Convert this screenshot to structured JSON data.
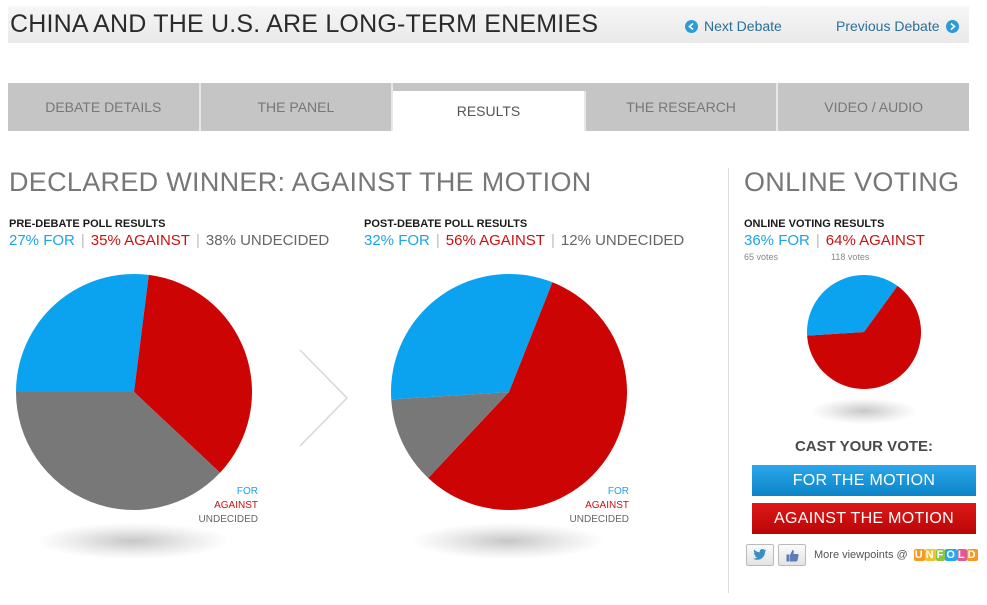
{
  "header": {
    "title": "CHINA AND THE U.S. ARE LONG-TERM ENEMIES",
    "prev_label": "Next Debate",
    "next_label": "Previous Debate"
  },
  "tabs": [
    {
      "label": "DEBATE DETAILS"
    },
    {
      "label": "THE PANEL"
    },
    {
      "label": "RESULTS"
    },
    {
      "label": "THE RESEARCH"
    },
    {
      "label": "VIDEO / AUDIO"
    }
  ],
  "results": {
    "winner_heading": "DECLARED WINNER: AGAINST THE MOTION",
    "pre": {
      "label": "PRE-DEBATE POLL RESULTS",
      "for_text": "27% FOR",
      "against_text": "35% AGAINST",
      "undecided_text": "38% UNDECIDED",
      "for": 27,
      "against": 35,
      "undecided": 38
    },
    "post": {
      "label": "POST-DEBATE POLL RESULTS",
      "for_text": "32% FOR",
      "against_text": "56% AGAINST",
      "undecided_text": "12% UNDECIDED",
      "for": 32,
      "against": 56,
      "undecided": 12
    },
    "legend": {
      "for": "FOR",
      "against": "AGAINST",
      "undecided": "UNDECIDED"
    }
  },
  "online": {
    "heading": "ONLINE VOTING",
    "label": "ONLINE VOTING RESULTS",
    "for_text": "36% FOR",
    "against_text": "64% AGAINST",
    "for_votes": "65 votes",
    "against_votes": "118 votes",
    "for": 36,
    "against": 64
  },
  "cast": {
    "title": "CAST YOUR VOTE:",
    "for_button": "FOR THE MOTION",
    "against_button": "AGAINST THE MOTION"
  },
  "social": {
    "more_text": "More viewpoints @",
    "brand": "UNFOLD"
  },
  "colors": {
    "for": "#0ba3f0",
    "against": "#cc0404",
    "undecided": "#787878"
  }
}
